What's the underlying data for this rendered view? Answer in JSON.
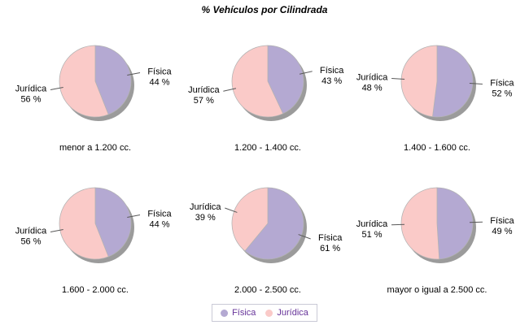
{
  "title": "% Vehículos por Cilindrada",
  "colors": {
    "fisica": "#b4a9d2",
    "juridica": "#facac8",
    "shadow": "#9b9b9b",
    "slice_stroke": "#b3b3b3",
    "leader_line": "#595959",
    "legend_text": "#663399",
    "legend_border": "#c9c9d6",
    "label_text": "#000000"
  },
  "legend": {
    "items": [
      {
        "label": "Física",
        "color_key": "fisica"
      },
      {
        "label": "Jurídica",
        "color_key": "juridica"
      }
    ]
  },
  "value_suffix": " %",
  "chart_data": [
    {
      "type": "pie",
      "title": "menor a 1.200 cc.",
      "labels": [
        "Física",
        "Jurídica"
      ],
      "values": [
        44,
        56
      ]
    },
    {
      "type": "pie",
      "title": "1.200 - 1.400 cc.",
      "labels": [
        "Física",
        "Jurídica"
      ],
      "values": [
        43,
        57
      ]
    },
    {
      "type": "pie",
      "title": "1.400 - 1.600 cc.",
      "labels": [
        "Física",
        "Jurídica"
      ],
      "values": [
        52,
        48
      ]
    },
    {
      "type": "pie",
      "title": "1.600 - 2.000 cc.",
      "labels": [
        "Física",
        "Jurídica"
      ],
      "values": [
        44,
        56
      ]
    },
    {
      "type": "pie",
      "title": "2.000 - 2.500 cc.",
      "labels": [
        "Física",
        "Jurídica"
      ],
      "values": [
        61,
        39
      ]
    },
    {
      "type": "pie",
      "title": "mayor o igual a 2.500 cc.",
      "labels": [
        "Física",
        "Jurídica"
      ],
      "values": [
        49,
        51
      ]
    }
  ]
}
